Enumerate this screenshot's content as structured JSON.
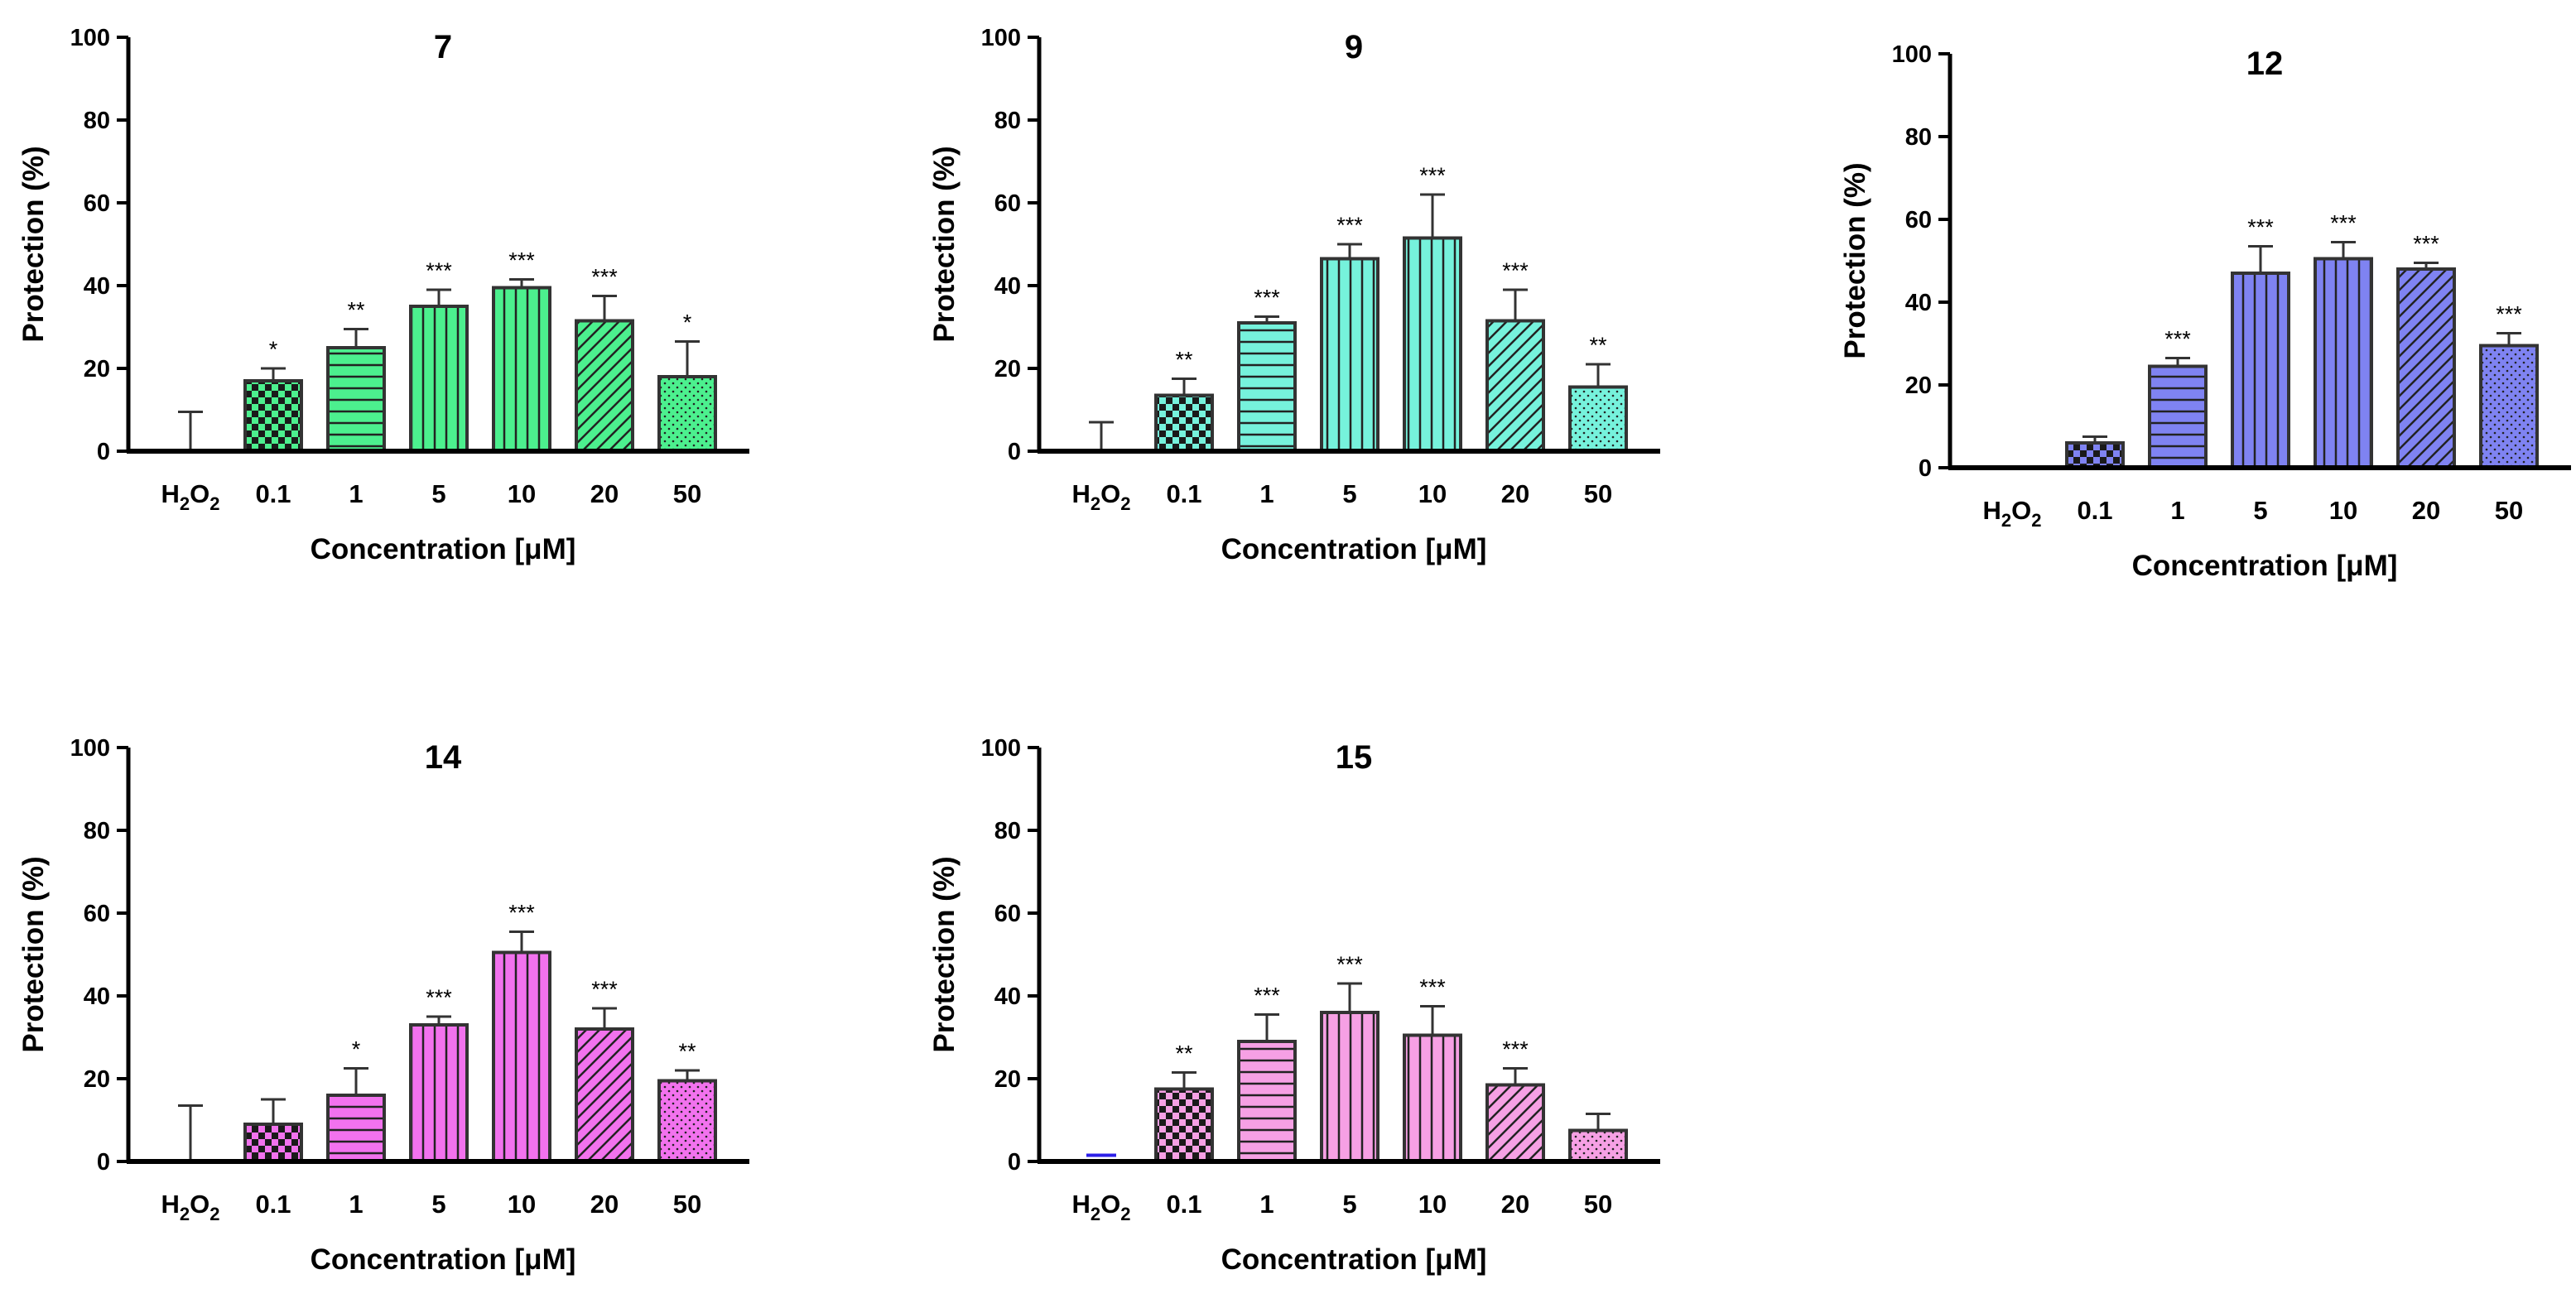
{
  "colors": {
    "green": "#4CF08E",
    "teal": "#76F2DC",
    "blue": "#7F83F2",
    "pink": "#F272EE",
    "light_pink": "#F6A0E4",
    "h2o2_bar": "#2C1FE8"
  },
  "patterns": [
    "none",
    "checker",
    "horizontal-lines",
    "vertical-lines",
    "vertical-lines",
    "diagonal-lines",
    "dots"
  ],
  "chart_data": [
    {
      "type": "bar",
      "title": "7",
      "xlabel": "Concentration [μM]",
      "ylabel": "Protection (%)",
      "ylim": [
        0,
        100
      ],
      "yticks": [
        "0",
        "20",
        "40",
        "60",
        "80",
        "100"
      ],
      "categories": [
        "H2O2",
        "0.1",
        "1",
        "5",
        "10",
        "20",
        "50"
      ],
      "values": [
        0,
        17,
        25,
        35,
        39.5,
        31.5,
        18
      ],
      "error": [
        9.5,
        3,
        4.5,
        4,
        2,
        6,
        8.5
      ],
      "significance": [
        "",
        "*",
        "**",
        "***",
        "***",
        "***",
        "*"
      ],
      "color": "#4CF08E"
    },
    {
      "type": "bar",
      "title": "9",
      "xlabel": "Concentration [μM]",
      "ylabel": "Protection (%)",
      "ylim": [
        0,
        100
      ],
      "yticks": [
        "0",
        "20",
        "40",
        "60",
        "80",
        "100"
      ],
      "categories": [
        "H2O2",
        "0.1",
        "1",
        "5",
        "10",
        "20",
        "50"
      ],
      "values": [
        0,
        13.5,
        31,
        46.5,
        51.5,
        31.5,
        15.5
      ],
      "error": [
        7,
        4,
        1.5,
        3.5,
        10.5,
        7.5,
        5.5
      ],
      "significance": [
        "",
        "**",
        "***",
        "***",
        "***",
        "***",
        "**"
      ],
      "color": "#76F2DC"
    },
    {
      "type": "bar",
      "title": "12",
      "xlabel": "Concentration [μM]",
      "ylabel": "Protection (%)",
      "ylim": [
        0,
        100
      ],
      "yticks": [
        "0",
        "20",
        "40",
        "60",
        "80",
        "100"
      ],
      "categories": [
        "H2O2",
        "0.1",
        "1",
        "5",
        "10",
        "20",
        "50"
      ],
      "values": [
        0,
        6,
        24.5,
        47,
        50.5,
        48,
        29.5
      ],
      "error": [
        0,
        1.5,
        2,
        6.5,
        4,
        1.5,
        3
      ],
      "significance": [
        "",
        "",
        "***",
        "***",
        "***",
        "***",
        "***"
      ],
      "color": "#7F83F2"
    },
    {
      "type": "bar",
      "title": "14",
      "xlabel": "Concentration [μM]",
      "ylabel": "Protection (%)",
      "ylim": [
        0,
        100
      ],
      "yticks": [
        "0",
        "20",
        "40",
        "60",
        "80",
        "100"
      ],
      "categories": [
        "H2O2",
        "0.1",
        "1",
        "5",
        "10",
        "20",
        "50"
      ],
      "values": [
        0,
        9,
        16,
        33,
        50.5,
        32,
        19.5
      ],
      "error": [
        13.5,
        6,
        6.5,
        2,
        5,
        5,
        2.5
      ],
      "significance": [
        "",
        "",
        "*",
        "***",
        "***",
        "***",
        "**"
      ],
      "color": "#F272EE"
    },
    {
      "type": "bar",
      "title": "15",
      "xlabel": "Concentration [μM]",
      "ylabel": "Protection (%)",
      "ylim": [
        0,
        100
      ],
      "yticks": [
        "0",
        "20",
        "40",
        "60",
        "80",
        "100"
      ],
      "categories": [
        "H2O2",
        "0.1",
        "1",
        "5",
        "10",
        "20",
        "50"
      ],
      "values": [
        1.5,
        17.5,
        29,
        36,
        30.5,
        18.5,
        7.5
      ],
      "error": [
        0,
        4,
        6.5,
        7,
        7,
        4,
        4
      ],
      "significance": [
        "",
        "**",
        "***",
        "***",
        "***",
        "***",
        ""
      ],
      "color": "#F6A0E4"
    }
  ]
}
